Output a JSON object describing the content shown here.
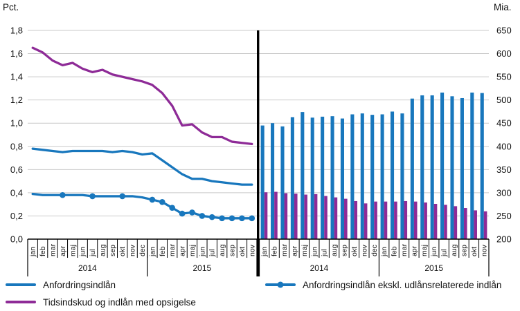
{
  "page": {
    "left_unit": "Pct.",
    "right_unit": "Mia."
  },
  "axes": {
    "left_ticks": [
      "1,8",
      "1,6",
      "1,4",
      "1,2",
      "1,0",
      "0,8",
      "0,6",
      "0,4",
      "0,2",
      "0,0"
    ],
    "right_ticks": [
      "650",
      "600",
      "550",
      "500",
      "450",
      "400",
      "350",
      "300",
      "250",
      "200"
    ],
    "months_2014": [
      "jan",
      "feb",
      "mar",
      "apr",
      "maj",
      "jun",
      "jul",
      "aug",
      "sep",
      "okt",
      "nov",
      "dec"
    ],
    "months_2015": [
      "jan",
      "feb",
      "mar",
      "apr",
      "maj",
      "jun",
      "jul",
      "aug",
      "sep",
      "okt",
      "nov"
    ],
    "year_2014": "2014",
    "year_2015": "2015"
  },
  "legend": {
    "anfordringsindlaan": "Anfordringsindlån",
    "anfordringsindlaan_ekskl": "Anfordringsindlån ekskl. udlånsrelaterede indlån",
    "tidsindskud": "Tidsindskud og indlån med opsigelse"
  },
  "colors": {
    "blue": "#1877bd",
    "purple": "#8e2b97",
    "grid": "#c9c9c9",
    "axis": "#000000"
  },
  "chart_data": [
    {
      "type": "line",
      "panel": "left",
      "ylabel": "Pct.",
      "ylim": [
        0.0,
        1.8
      ],
      "ytick_step": 0.2,
      "grid": true,
      "x_years": [
        "2014",
        "2015"
      ],
      "x_months": [
        "jan",
        "feb",
        "mar",
        "apr",
        "maj",
        "jun",
        "jul",
        "aug",
        "sep",
        "okt",
        "nov",
        "dec",
        "jan",
        "feb",
        "mar",
        "apr",
        "maj",
        "jun",
        "jul",
        "aug",
        "sep",
        "okt",
        "nov"
      ],
      "series": [
        {
          "name": "Anfordringsindlån",
          "color": "blue",
          "marker": false,
          "values": [
            0.78,
            0.77,
            0.76,
            0.75,
            0.76,
            0.76,
            0.76,
            0.76,
            0.75,
            0.76,
            0.75,
            0.73,
            0.74,
            0.68,
            0.62,
            0.56,
            0.52,
            0.52,
            0.5,
            0.49,
            0.48,
            0.47,
            0.47
          ]
        },
        {
          "name": "Anfordringsindlån ekskl. udlånsrelaterede indlån",
          "color": "blue",
          "marker": true,
          "marker_indices": [
            3,
            6,
            9,
            12,
            13,
            14,
            15,
            16,
            17,
            18,
            19,
            20,
            21,
            22
          ],
          "values": [
            0.39,
            0.38,
            0.38,
            0.38,
            0.38,
            0.38,
            0.37,
            0.37,
            0.37,
            0.37,
            0.37,
            0.36,
            0.34,
            0.32,
            0.27,
            0.22,
            0.23,
            0.2,
            0.19,
            0.18,
            0.18,
            0.18,
            0.18
          ]
        },
        {
          "name": "Tidsindskud og indlån med opsigelse",
          "color": "purple",
          "marker": false,
          "values": [
            1.65,
            1.61,
            1.54,
            1.5,
            1.52,
            1.47,
            1.44,
            1.46,
            1.42,
            1.4,
            1.38,
            1.36,
            1.33,
            1.26,
            1.15,
            0.98,
            0.99,
            0.92,
            0.88,
            0.88,
            0.84,
            0.83,
            0.82
          ]
        }
      ]
    },
    {
      "type": "bar",
      "panel": "right",
      "ylabel": "Mia.",
      "ylim": [
        200,
        650
      ],
      "ytick_step": 50,
      "grid": true,
      "x_years": [
        "2014",
        "2015"
      ],
      "x_months": [
        "jan",
        "feb",
        "mar",
        "apr",
        "maj",
        "jun",
        "jul",
        "aug",
        "sep",
        "okt",
        "nov",
        "dec",
        "jan",
        "feb",
        "mar",
        "apr",
        "maj",
        "jun",
        "jul",
        "aug",
        "sep",
        "okt",
        "nov"
      ],
      "series": [
        {
          "name": "Anfordringsindlån",
          "color": "blue",
          "values": [
            445,
            450,
            443,
            463,
            474,
            462,
            464,
            465,
            460,
            469,
            471,
            468,
            469,
            475,
            471,
            503,
            510,
            510,
            516,
            508,
            504,
            516,
            515
          ]
        },
        {
          "name": "Tidsindskud og indlån med opsigelse",
          "color": "purple",
          "values": [
            301,
            302,
            299,
            298,
            296,
            297,
            293,
            290,
            287,
            282,
            277,
            281,
            281,
            281,
            282,
            281,
            279,
            276,
            274,
            271,
            267,
            262,
            260
          ]
        }
      ]
    }
  ]
}
